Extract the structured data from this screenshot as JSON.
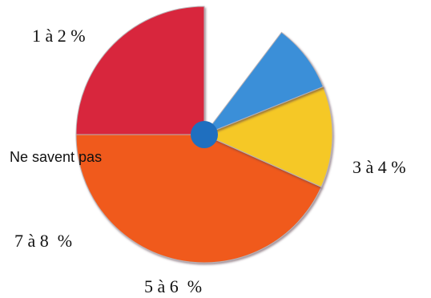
{
  "chart_data": {
    "type": "pie",
    "categories": [
      "1 à 2 %",
      "3 à 4 %",
      "5 à 6  %",
      "7 à 8  %",
      "Ne savent pas"
    ],
    "values": [
      25.0,
      43.3,
      12.8,
      8.6,
      10.3
    ],
    "colors": [
      "#d8263c",
      "#f05a1e",
      "#f5c828",
      "#3b8fd8",
      "#ffffff"
    ],
    "center_dot_color": "#1f6fbf",
    "start_angle_deg": -90,
    "direction": "counterclockwise",
    "title": "",
    "legend": "none"
  }
}
